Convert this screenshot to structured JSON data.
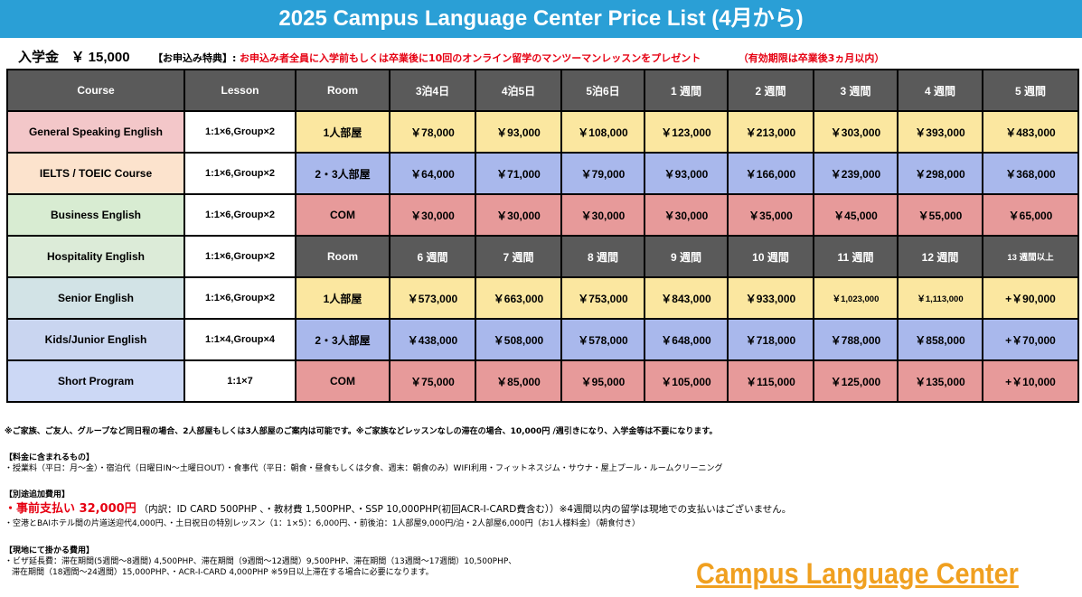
{
  "title": "2025 Campus Language Center Price List (4月から)",
  "admission": {
    "label": "入学金",
    "amount": "￥ 15,000",
    "benefit_label": "【お申込み特典】:",
    "benefit_text": "お申込み者全員に入学前もしくは卒業後に10回のオンライン留学のマンツーマンレッスンをプレゼント",
    "validity": "（有効期限は卒業後3ヵ月以内）"
  },
  "colors": {
    "banner": "#2a9fd6",
    "accent_red": "#e60012",
    "logo": "#f0a020"
  },
  "table": {
    "header1": [
      "Course",
      "Lesson",
      "Room",
      "3泊4日",
      "4泊5日",
      "5泊6日",
      "1 週間",
      "2 週間",
      "3 週間",
      "4 週間",
      "5 週間"
    ],
    "header2": [
      "Room",
      "6 週間",
      "7 週間",
      "8 週間",
      "9 週間",
      "10 週間",
      "11 週間",
      "12 週間",
      "13 週間以上"
    ],
    "courses": [
      {
        "name": "General Speaking English",
        "lesson": "1:1×6,Group×2"
      },
      {
        "name": "IELTS / TOEIC Course",
        "lesson": "1:1×6,Group×2"
      },
      {
        "name": "Business English",
        "lesson": "1:1×6,Group×2"
      },
      {
        "name": "Hospitality English",
        "lesson": "1:1×6,Group×2"
      },
      {
        "name": "Senior English",
        "lesson": "1:1×6,Group×2"
      },
      {
        "name": "Kids/Junior English",
        "lesson": "1:1×4,Group×4"
      },
      {
        "name": "Short Program",
        "lesson": "1:1×7"
      }
    ],
    "short_term": [
      {
        "room": "1人部屋",
        "prices": [
          "￥78,000",
          "￥93,000",
          "￥108,000",
          "￥123,000",
          "￥213,000",
          "￥303,000",
          "￥393,000",
          "￥483,000"
        ]
      },
      {
        "room": "2・3人部屋",
        "prices": [
          "￥64,000",
          "￥71,000",
          "￥79,000",
          "￥93,000",
          "￥166,000",
          "￥239,000",
          "￥298,000",
          "￥368,000"
        ]
      },
      {
        "room": "COM",
        "prices": [
          "￥30,000",
          "￥30,000",
          "￥30,000",
          "￥30,000",
          "￥35,000",
          "￥45,000",
          "￥55,000",
          "￥65,000"
        ]
      }
    ],
    "long_term": [
      {
        "room": "1人部屋",
        "prices": [
          "￥573,000",
          "￥663,000",
          "￥753,000",
          "￥843,000",
          "￥933,000",
          "￥1,023,000",
          "￥1,113,000",
          "+￥90,000"
        ]
      },
      {
        "room": "2・3人部屋",
        "prices": [
          "￥438,000",
          "￥508,000",
          "￥578,000",
          "￥648,000",
          "￥718,000",
          "￥788,000",
          "￥858,000",
          "+￥70,000"
        ]
      },
      {
        "room": "COM",
        "prices": [
          "￥75,000",
          "￥85,000",
          "￥95,000",
          "￥105,000",
          "￥115,000",
          "￥125,000",
          "￥135,000",
          "+￥10,000"
        ]
      }
    ]
  },
  "notes": {
    "family_note": "※ご家族、ご友人、グループなど同日程の場合、2人部屋もしくは3人部屋のご案内は可能です。※ご家族などレッスンなしの滞在の場合、10,000円 /週引きになり、入学金等は不要になります。",
    "included_title": "【料金に含まれるもの】",
    "included_text": "・授業料（平日：月～金）・宿泊代（日曜日IN～土曜日OUT）・食事代（平日：朝食・昼食もしくは夕食、週末：朝食のみ）WIFI利用・フィットネスジム・サウナ・屋上プール・ルームクリーニング",
    "extra_title": "【別途追加費用】",
    "prepay_label": "・事前支払い 32,000円",
    "prepay_detail": "（内訳：ID CARD 500PHP 、・教材費 1,500PHP、・SSP 10,000PHP(初回ACR-I-CARD費含む））※4週間以内の留学は現地での支払いはございません。",
    "extra_text": "・空港とBAIホテル間の片道送迎代4,000円、・土日祝日の特別レッスン（1：1×5）：6,000円、・前後泊：1人部屋9,000円/泊・2人部屋6,000円（お1人様料金）（朝食付き）",
    "local_title": "【現地にて掛かる費用】",
    "local_text_1": "・ビザ延長費：滞在期間(5週間～8週間) 4,500PHP、滞在期間（9週間～12週間）9,500PHP、滞在期間（13週間～17週間）10,500PHP、",
    "local_text_2": "滞在期間（18週間～24週間）15,000PHP、・ACR-I-CARD 4,000PHP ※59日以上滞在する場合に必要になります。"
  },
  "logo_text": "Campus Language Center"
}
